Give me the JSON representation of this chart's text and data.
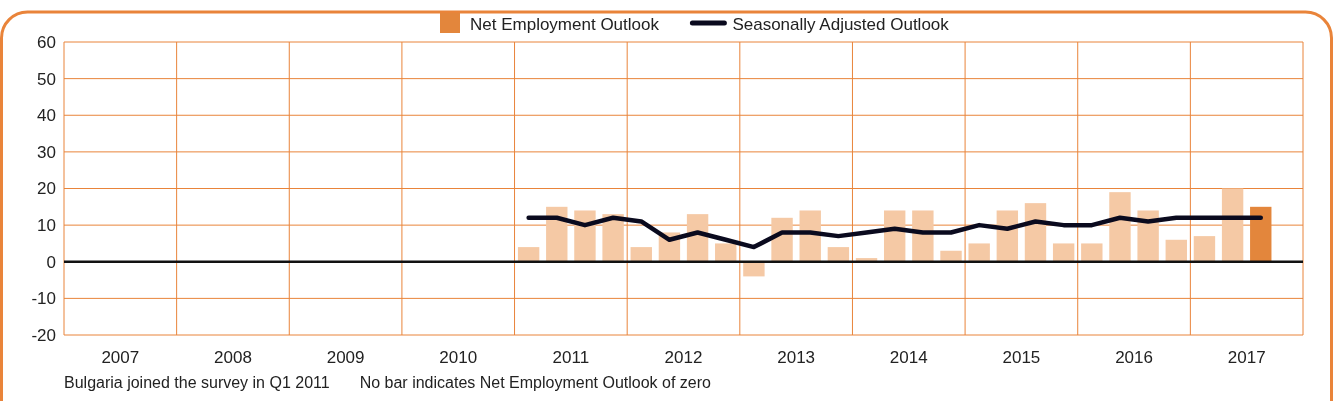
{
  "chart_data": {
    "type": "bar",
    "x": [
      2010.625,
      2010.875,
      2011.125,
      2011.375,
      2011.625,
      2011.875,
      2012.125,
      2012.375,
      2012.625,
      2012.875,
      2013.125,
      2013.375,
      2013.625,
      2013.875,
      2014.125,
      2014.375,
      2014.625,
      2014.875,
      2015.125,
      2015.375,
      2015.625,
      2015.875,
      2016.125,
      2016.375,
      2016.625,
      2016.875,
      2017.125
    ],
    "series": [
      {
        "name": "Net Employment Outlook",
        "color": "#e3863c",
        "colors": [
          "#f5c9a5",
          "#f5c9a5",
          "#f5c9a5",
          "#f5c9a5",
          "#f5c9a5",
          "#f5c9a5",
          "#f5c9a5",
          "#f5c9a5",
          "#f5c9a5",
          "#f5c9a5",
          "#f5c9a5",
          "#f5c9a5",
          "#f5c9a5",
          "#f5c9a5",
          "#f5c9a5",
          "#f5c9a5",
          "#f5c9a5",
          "#f5c9a5",
          "#f5c9a5",
          "#f5c9a5",
          "#f5c9a5",
          "#f5c9a5",
          "#f5c9a5",
          "#f5c9a5",
          "#f5c9a5",
          "#f5c9a5",
          "#e3863c"
        ],
        "values": [
          4,
          15,
          14,
          13,
          4,
          8,
          13,
          5,
          -4,
          12,
          14,
          4,
          1,
          14,
          14,
          3,
          5,
          14,
          16,
          5,
          5,
          19,
          14,
          6,
          7,
          20,
          15
        ]
      },
      {
        "name": "Seasonally Adjusted Outlook",
        "type": "line",
        "color": "#0a0a1e",
        "values": [
          12,
          12,
          10,
          12,
          11,
          6,
          8,
          6,
          4,
          8,
          8,
          7,
          8,
          9,
          8,
          8,
          10,
          9,
          11,
          10,
          10,
          12,
          11,
          12,
          12,
          12,
          12
        ]
      }
    ],
    "xlim": [
      2006.5,
      2017.5
    ],
    "xticks": [
      {
        "value": 2006.5,
        "label": null
      },
      2007,
      {
        "value": 2007.5,
        "label": null
      },
      2008,
      {
        "value": 2008.5,
        "label": null
      },
      2009,
      {
        "value": 2009.5,
        "label": null
      },
      2010,
      {
        "value": 2010.5,
        "label": null
      },
      2011,
      {
        "value": 2011.5,
        "label": null
      },
      2012,
      {
        "value": 2012.5,
        "label": null
      },
      2013,
      {
        "value": 2013.5,
        "label": null
      },
      2014,
      {
        "value": 2014.5,
        "label": null
      },
      2015,
      {
        "value": 2015.5,
        "label": null
      },
      2016,
      {
        "value": 2016.5,
        "label": null
      },
      2017,
      {
        "value": 2017.5,
        "label": null
      }
    ],
    "ylim": [
      -20,
      60
    ],
    "yticks": [
      -20,
      -10,
      0,
      10,
      20,
      30,
      40,
      50,
      60
    ],
    "grid": true,
    "legend": "top",
    "annotations": [
      "Bulgaria joined the survey in Q1 2011",
      "No bar indicates Net Employment Outlook of zero"
    ]
  }
}
